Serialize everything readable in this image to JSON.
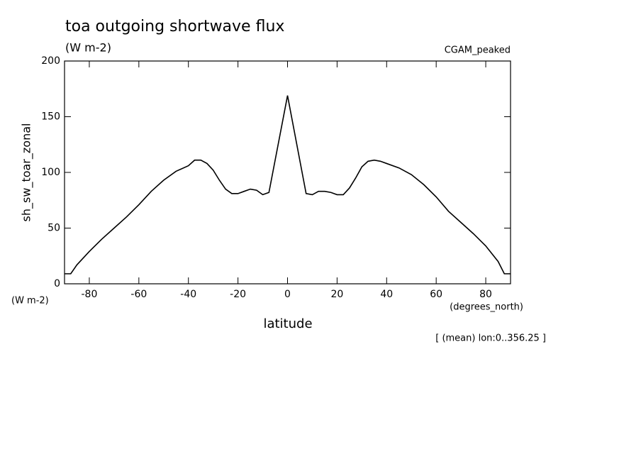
{
  "chart_data": {
    "type": "line",
    "title": "toa outgoing shortwave flux",
    "subtitle": "(W m-2)",
    "dataset_label": "CGAM_peaked",
    "y_label": "sh_sw_toar_zonal",
    "y_units": "(W m-2)",
    "x_label": "latitude",
    "x_units": "(degrees_north)",
    "footnote": "[ (mean) lon:0..356.25 ]",
    "x": [
      -90,
      -87.5,
      -85,
      -80,
      -75,
      -70,
      -65,
      -60,
      -55,
      -50,
      -45,
      -40,
      -37.5,
      -35,
      -32.5,
      -30,
      -27.5,
      -25,
      -22.5,
      -20,
      -17.5,
      -15,
      -12.5,
      -10,
      -7.5,
      0,
      7.5,
      10,
      12.5,
      15,
      17.5,
      20,
      22.5,
      25,
      27.5,
      30,
      32.5,
      35,
      37.5,
      40,
      45,
      50,
      55,
      60,
      65,
      70,
      75,
      80,
      85,
      87.5,
      90
    ],
    "series": [
      {
        "name": "sh_sw_toar_zonal",
        "color": "#000000",
        "values": [
          9,
          9,
          17,
          29,
          40,
          50,
          60,
          71,
          83,
          93,
          101,
          106,
          111,
          111,
          108,
          102,
          93,
          85,
          81,
          81,
          83,
          85,
          84,
          80,
          82,
          169,
          81,
          80,
          83,
          83,
          82,
          80,
          80,
          86,
          95,
          105,
          110,
          111,
          110,
          108,
          104,
          98,
          89,
          78,
          65,
          55,
          45,
          34,
          20,
          9,
          9
        ]
      }
    ],
    "xlim": [
      -90,
      90
    ],
    "ylim": [
      0,
      200
    ],
    "xticks": [
      -80,
      -60,
      -40,
      -20,
      0,
      20,
      40,
      60,
      80
    ],
    "yticks": [
      0,
      50,
      100,
      150,
      200
    ]
  }
}
